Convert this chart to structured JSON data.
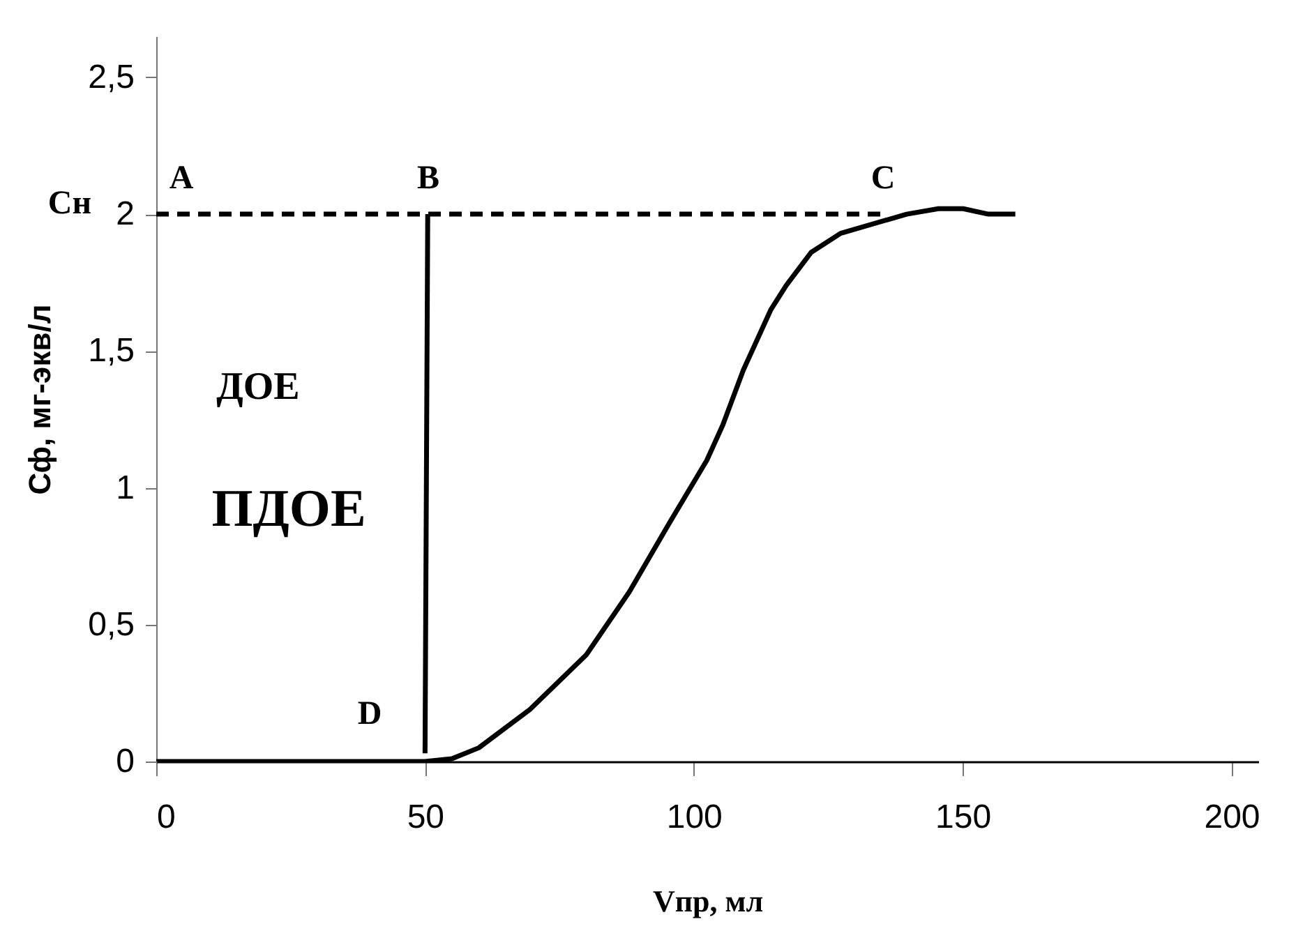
{
  "chart_data": {
    "type": "line",
    "xlabel": "Vпр, мл",
    "ylabel": "Сф, мг-экв/л",
    "xlim": [
      0,
      205
    ],
    "ylim": [
      0,
      2.65
    ],
    "xticks": [
      0,
      50,
      100,
      150,
      200
    ],
    "yticks": [
      0,
      {
        "value": 0.5,
        "label": "0,5"
      },
      1,
      {
        "value": 1.5,
        "label": "1,5"
      },
      2,
      {
        "value": 2.5,
        "label": "2,5"
      }
    ],
    "grid": false,
    "marker": "none",
    "series": [
      {
        "color": "#000000",
        "line_style": "solid",
        "x": [
          0,
          50,
          55,
          60,
          69.5,
          80,
          88,
          95.7,
          102.4,
          105.4,
          109.2,
          114.3,
          117.2,
          121.8,
          127.3,
          139.6,
          145.5,
          150.1,
          154.8,
          159.8
        ],
        "values": [
          0,
          0,
          0.01,
          0.05,
          0.19,
          0.39,
          0.62,
          0.88,
          1.1,
          1.23,
          1.43,
          1.65,
          1.74,
          1.86,
          1.93,
          2.0,
          2.02,
          2.02,
          2.0,
          2.0
        ]
      },
      {
        "color": "#000000",
        "line_style": "solid",
        "x": [
          50,
          50.5
        ],
        "values": [
          0.03,
          2.0
        ]
      },
      {
        "color": "#000000",
        "line_style": "dashed",
        "x": [
          0,
          136
        ],
        "values": [
          2.0,
          2.0
        ]
      }
    ],
    "annotations": [
      "Сн",
      "A",
      "B",
      "C",
      "D",
      "ДОЕ",
      "ПДОЕ"
    ]
  }
}
